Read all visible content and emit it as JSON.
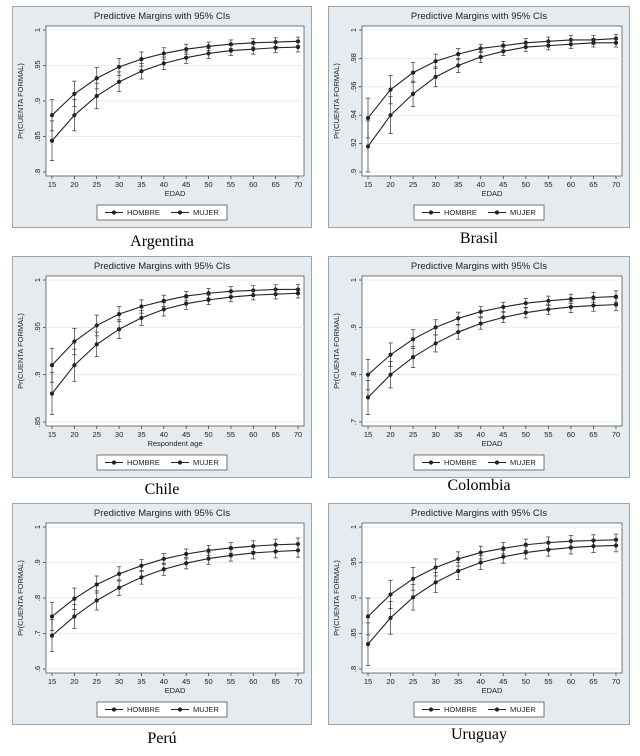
{
  "chart_data": [
    {
      "type": "line",
      "country": "Argentina",
      "title": "Predictive Margins with 95% CIs",
      "xlabel": "EDAD",
      "ylabel": "Pr(CUENTA FORMAL)",
      "x": [
        15,
        20,
        25,
        30,
        35,
        40,
        45,
        50,
        55,
        60,
        65,
        70
      ],
      "xticks": [
        "15",
        "20",
        "25",
        "30",
        "35",
        "40",
        "45",
        "50",
        "55",
        "60",
        "65",
        "70"
      ],
      "ylim": [
        0.8,
        1.0
      ],
      "yticks": [
        0.8,
        0.85,
        0.9,
        0.95,
        1.0
      ],
      "ytick_labels": [
        ".8",
        ".85",
        ".9",
        ".95",
        "1"
      ],
      "legend_position": "bottom",
      "series": [
        {
          "name": "HOMBRE",
          "values": [
            0.88,
            0.91,
            0.932,
            0.948,
            0.959,
            0.967,
            0.973,
            0.977,
            0.98,
            0.982,
            0.983,
            0.984
          ],
          "ci": [
            0.022,
            0.018,
            0.015,
            0.012,
            0.01,
            0.008,
            0.007,
            0.006,
            0.006,
            0.006,
            0.006,
            0.006
          ]
        },
        {
          "name": "MUJER",
          "values": [
            0.844,
            0.88,
            0.907,
            0.927,
            0.942,
            0.953,
            0.961,
            0.967,
            0.971,
            0.973,
            0.975,
            0.976
          ],
          "ci": [
            0.028,
            0.022,
            0.018,
            0.014,
            0.011,
            0.009,
            0.008,
            0.007,
            0.007,
            0.007,
            0.007,
            0.007
          ]
        }
      ]
    },
    {
      "type": "line",
      "country": "Brasil",
      "title": "Predictive Margins with 95% CIs",
      "xlabel": "EDAD",
      "ylabel": "Pr(CUENTA FORMAL)",
      "x": [
        15,
        20,
        25,
        30,
        35,
        40,
        45,
        50,
        55,
        60,
        65,
        70
      ],
      "xticks": [
        "15",
        "20",
        "25",
        "30",
        "35",
        "40",
        "45",
        "50",
        "55",
        "60",
        "65",
        "70"
      ],
      "ylim": [
        0.9,
        1.0
      ],
      "yticks": [
        0.9,
        0.92,
        0.94,
        0.96,
        0.98,
        1.0
      ],
      "ytick_labels": [
        ".9",
        ".92",
        ".94",
        ".96",
        ".98",
        "1"
      ],
      "legend_position": "bottom",
      "series": [
        {
          "name": "HOMBRE",
          "values": [
            0.938,
            0.958,
            0.97,
            0.978,
            0.983,
            0.987,
            0.989,
            0.991,
            0.992,
            0.993,
            0.993,
            0.994
          ],
          "ci": [
            0.014,
            0.01,
            0.007,
            0.005,
            0.004,
            0.003,
            0.003,
            0.003,
            0.003,
            0.003,
            0.003,
            0.003
          ]
        },
        {
          "name": "MUJER",
          "values": [
            0.918,
            0.94,
            0.955,
            0.967,
            0.975,
            0.981,
            0.985,
            0.988,
            0.989,
            0.99,
            0.991,
            0.991
          ],
          "ci": [
            0.018,
            0.013,
            0.009,
            0.007,
            0.005,
            0.004,
            0.003,
            0.003,
            0.003,
            0.003,
            0.003,
            0.003
          ]
        }
      ]
    },
    {
      "type": "line",
      "country": "Chile",
      "title": "Predictive Margins with 95% CIs",
      "xlabel": "Respondent age",
      "ylabel": "Pr(CUENTA FORMAL)",
      "x": [
        15,
        20,
        25,
        30,
        35,
        40,
        45,
        50,
        55,
        60,
        65,
        70
      ],
      "xticks": [
        "15",
        "20",
        "25",
        "30",
        "35",
        "40",
        "45",
        "50",
        "55",
        "60",
        "65",
        "70"
      ],
      "ylim": [
        0.85,
        1.0
      ],
      "yticks": [
        0.85,
        0.9,
        0.95,
        1.0
      ],
      "ytick_labels": [
        ".85",
        ".9",
        ".95",
        "1"
      ],
      "legend_position": "bottom",
      "series": [
        {
          "name": "HOMBRE",
          "values": [
            0.91,
            0.935,
            0.952,
            0.964,
            0.972,
            0.978,
            0.983,
            0.986,
            0.988,
            0.989,
            0.99,
            0.99
          ],
          "ci": [
            0.018,
            0.014,
            0.011,
            0.008,
            0.007,
            0.006,
            0.005,
            0.005,
            0.005,
            0.005,
            0.005,
            0.005
          ]
        },
        {
          "name": "MUJER",
          "values": [
            0.88,
            0.91,
            0.932,
            0.948,
            0.96,
            0.969,
            0.975,
            0.979,
            0.982,
            0.984,
            0.985,
            0.986
          ],
          "ci": [
            0.022,
            0.017,
            0.013,
            0.01,
            0.008,
            0.007,
            0.006,
            0.005,
            0.005,
            0.005,
            0.005,
            0.005
          ]
        }
      ]
    },
    {
      "type": "line",
      "country": "Colombia",
      "title": "Predictive Margins with 95% CIs",
      "xlabel": "EDAD",
      "ylabel": "Pr(CUENTA FORMAL)",
      "x": [
        15,
        20,
        25,
        30,
        35,
        40,
        45,
        50,
        55,
        60,
        65,
        70
      ],
      "xticks": [
        "15",
        "20",
        "25",
        "30",
        "35",
        "40",
        "45",
        "50",
        "55",
        "60",
        "65",
        "70"
      ],
      "ylim": [
        0.7,
        1.0
      ],
      "yticks": [
        0.7,
        0.8,
        0.9,
        1.0
      ],
      "ytick_labels": [
        ".7",
        ".8",
        ".9",
        "1"
      ],
      "legend_position": "bottom",
      "series": [
        {
          "name": "HOMBRE",
          "values": [
            0.8,
            0.842,
            0.875,
            0.9,
            0.919,
            0.933,
            0.943,
            0.951,
            0.956,
            0.96,
            0.963,
            0.965
          ],
          "ci": [
            0.032,
            0.025,
            0.02,
            0.016,
            0.013,
            0.011,
            0.01,
            0.01,
            0.01,
            0.01,
            0.011,
            0.012
          ]
        },
        {
          "name": "MUJER",
          "values": [
            0.752,
            0.8,
            0.837,
            0.866,
            0.89,
            0.908,
            0.921,
            0.931,
            0.938,
            0.943,
            0.946,
            0.948
          ],
          "ci": [
            0.036,
            0.028,
            0.022,
            0.018,
            0.015,
            0.012,
            0.011,
            0.011,
            0.011,
            0.012,
            0.012,
            0.013
          ]
        }
      ]
    },
    {
      "type": "line",
      "country": "Perú",
      "title": "Predictive Margins with 95% CIs",
      "xlabel": "EDAD",
      "ylabel": "Pr(CUENTA FORMAL)",
      "x": [
        15,
        20,
        25,
        30,
        35,
        40,
        45,
        50,
        55,
        60,
        65,
        70
      ],
      "xticks": [
        "15",
        "20",
        "25",
        "30",
        "35",
        "40",
        "45",
        "50",
        "55",
        "60",
        "65",
        "70"
      ],
      "ylim": [
        0.6,
        1.0
      ],
      "yticks": [
        0.6,
        0.7,
        0.8,
        0.9,
        1.0
      ],
      "ytick_labels": [
        ".6",
        ".7",
        ".8",
        ".9",
        "1"
      ],
      "legend_position": "bottom",
      "series": [
        {
          "name": "HOMBRE",
          "values": [
            0.748,
            0.798,
            0.838,
            0.868,
            0.891,
            0.91,
            0.924,
            0.934,
            0.941,
            0.946,
            0.95,
            0.952
          ],
          "ci": [
            0.04,
            0.03,
            0.024,
            0.02,
            0.017,
            0.015,
            0.014,
            0.014,
            0.015,
            0.015,
            0.016,
            0.017
          ]
        },
        {
          "name": "MUJER",
          "values": [
            0.694,
            0.748,
            0.793,
            0.829,
            0.858,
            0.881,
            0.898,
            0.911,
            0.92,
            0.927,
            0.931,
            0.934
          ],
          "ci": [
            0.045,
            0.034,
            0.027,
            0.022,
            0.019,
            0.017,
            0.016,
            0.016,
            0.016,
            0.017,
            0.018,
            0.019
          ]
        }
      ]
    },
    {
      "type": "line",
      "country": "Uruguay",
      "title": "Predictive Margins with 95% CIs",
      "xlabel": "EDAD",
      "ylabel": "Pr(CUENTA FORMAL)",
      "x": [
        15,
        20,
        25,
        30,
        35,
        40,
        45,
        50,
        55,
        60,
        65,
        70
      ],
      "xticks": [
        "15",
        "20",
        "25",
        "30",
        "35",
        "40",
        "45",
        "50",
        "55",
        "60",
        "65",
        "70"
      ],
      "ylim": [
        0.8,
        1.0
      ],
      "yticks": [
        0.8,
        0.85,
        0.9,
        0.95,
        1.0
      ],
      "ytick_labels": [
        ".8",
        ".85",
        ".9",
        ".95",
        "1"
      ],
      "legend_position": "bottom",
      "series": [
        {
          "name": "HOMBRE",
          "values": [
            0.874,
            0.905,
            0.927,
            0.943,
            0.955,
            0.964,
            0.97,
            0.975,
            0.978,
            0.98,
            0.981,
            0.982
          ],
          "ci": [
            0.026,
            0.02,
            0.016,
            0.012,
            0.01,
            0.009,
            0.008,
            0.008,
            0.008,
            0.008,
            0.008,
            0.008
          ]
        },
        {
          "name": "MUJER",
          "values": [
            0.835,
            0.872,
            0.901,
            0.922,
            0.938,
            0.95,
            0.958,
            0.964,
            0.968,
            0.971,
            0.973,
            0.974
          ],
          "ci": [
            0.03,
            0.023,
            0.018,
            0.014,
            0.012,
            0.01,
            0.009,
            0.009,
            0.009,
            0.009,
            0.009,
            0.009
          ]
        }
      ]
    }
  ]
}
